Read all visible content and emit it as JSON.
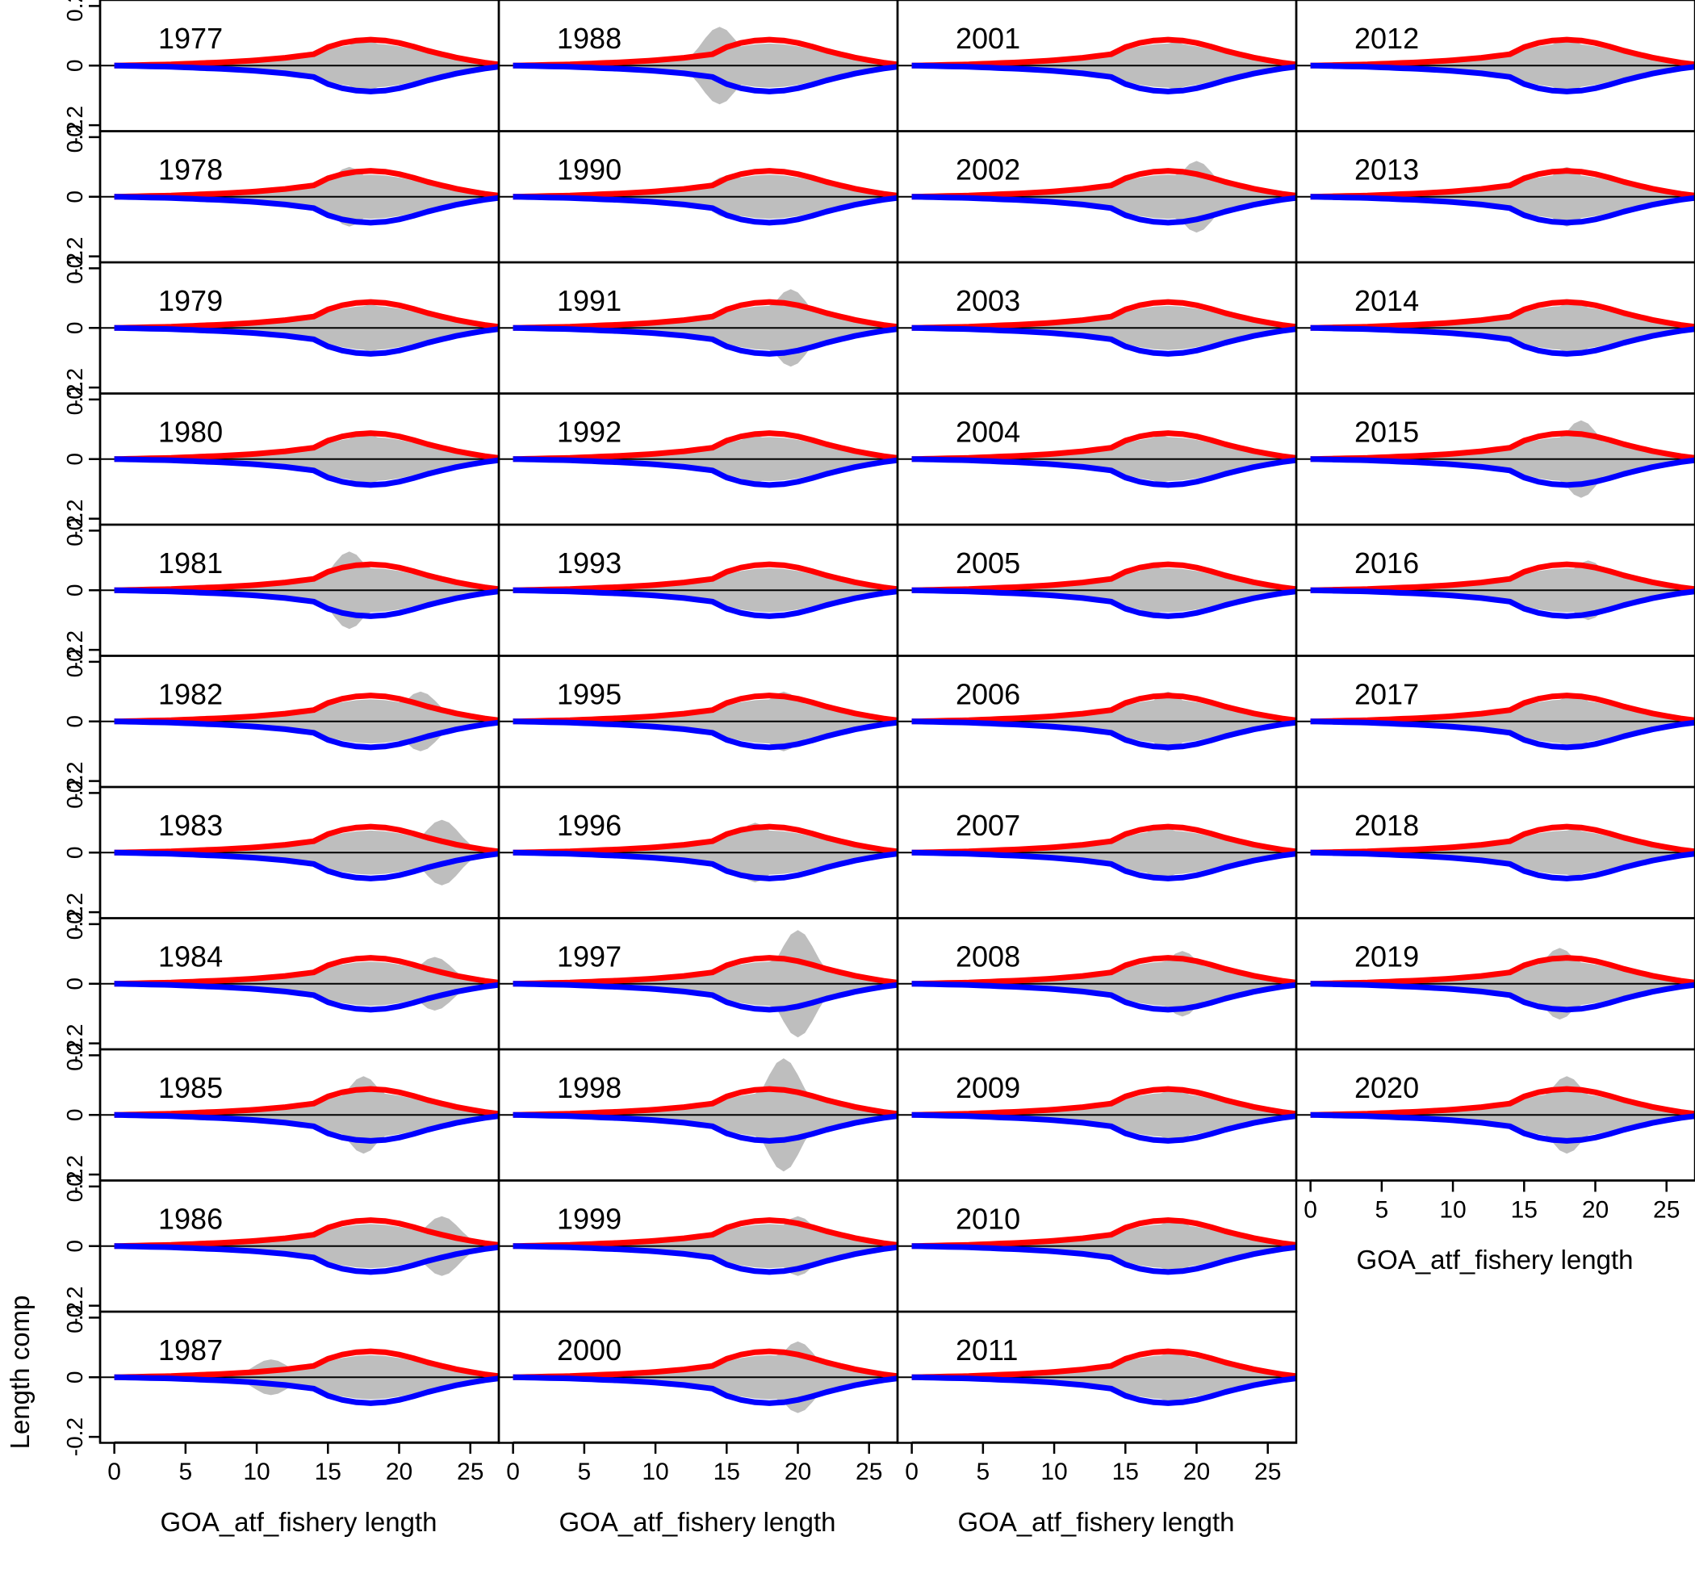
{
  "colors": {
    "observed_fill": "#bebebe",
    "expected_positive": "#ff0000",
    "expected_negative": "#0000ff",
    "zero_line": "#000000",
    "frame": "#000000"
  },
  "axes": {
    "xlabel": "GOA_atf_fishery length",
    "ylabel": "Length comp",
    "x_ticks": [
      0,
      5,
      10,
      15,
      20,
      25
    ],
    "x_tick_labels": [
      "0",
      "5",
      "10",
      "15",
      "20",
      "25"
    ],
    "y_ticks": [
      -0.2,
      0,
      0.2
    ],
    "y_tick_labels": [
      "-0.2",
      "0",
      "0.2"
    ]
  },
  "chart_data": {
    "type": "area",
    "layout": "small multiples, 11 rows x 4 columns, filled column by column",
    "xlabel": "GOA_atf_fishery length",
    "ylabel": "Length comp",
    "xlim": [
      -1,
      27
    ],
    "ylim": [
      -0.22,
      0.22
    ],
    "x_ticks": [
      0,
      5,
      10,
      15,
      20,
      25
    ],
    "y_ticks": [
      -0.2,
      0,
      0.2
    ],
    "grid": false,
    "legend": "none",
    "series_descriptions": [
      "grey shaded area: observed length composition (mirrored above and below zero)",
      "red line: expected composition (positive side)",
      "blue line: expected composition (negative side)"
    ],
    "expected_profile": {
      "x": [
        0,
        2,
        4,
        6,
        8,
        10,
        12,
        14,
        15,
        16,
        17,
        18,
        19,
        20,
        21,
        22,
        23,
        24,
        25,
        26,
        27
      ],
      "y": [
        0.0,
        0.002,
        0.004,
        0.008,
        0.012,
        0.018,
        0.026,
        0.038,
        0.062,
        0.076,
        0.084,
        0.087,
        0.084,
        0.076,
        0.064,
        0.05,
        0.038,
        0.027,
        0.018,
        0.01,
        0.004
      ]
    },
    "panels": [
      {
        "year": "1977",
        "column": 1,
        "row": 1,
        "obs_peak_x": 17.5,
        "obs_peak_y": 0.09
      },
      {
        "year": "1978",
        "column": 1,
        "row": 2,
        "obs_peak_x": 16.5,
        "obs_peak_y": 0.1
      },
      {
        "year": "1979",
        "column": 1,
        "row": 3,
        "obs_peak_x": 18,
        "obs_peak_y": 0.08
      },
      {
        "year": "1980",
        "column": 1,
        "row": 4,
        "obs_peak_x": 17.5,
        "obs_peak_y": 0.09
      },
      {
        "year": "1981",
        "column": 1,
        "row": 5,
        "obs_peak_x": 16.5,
        "obs_peak_y": 0.13
      },
      {
        "year": "1982",
        "column": 1,
        "row": 6,
        "obs_peak_x": 21.5,
        "obs_peak_y": 0.1
      },
      {
        "year": "1983",
        "column": 1,
        "row": 7,
        "obs_peak_x": 23,
        "obs_peak_y": 0.11
      },
      {
        "year": "1984",
        "column": 1,
        "row": 8,
        "obs_peak_x": 22.5,
        "obs_peak_y": 0.09
      },
      {
        "year": "1985",
        "column": 1,
        "row": 9,
        "obs_peak_x": 17.5,
        "obs_peak_y": 0.13
      },
      {
        "year": "1986",
        "column": 1,
        "row": 10,
        "obs_peak_x": 23,
        "obs_peak_y": 0.1
      },
      {
        "year": "1987",
        "column": 1,
        "row": 11,
        "obs_peak_x": 11,
        "obs_peak_y": 0.06
      },
      {
        "year": "1988",
        "column": 2,
        "row": 1,
        "obs_peak_x": 14.5,
        "obs_peak_y": 0.13
      },
      {
        "year": "1990",
        "column": 2,
        "row": 2,
        "obs_peak_x": 15,
        "obs_peak_y": 0.07
      },
      {
        "year": "1991",
        "column": 2,
        "row": 3,
        "obs_peak_x": 19.5,
        "obs_peak_y": 0.13
      },
      {
        "year": "1992",
        "column": 2,
        "row": 4,
        "obs_peak_x": 17,
        "obs_peak_y": 0.08
      },
      {
        "year": "1993",
        "column": 2,
        "row": 5,
        "obs_peak_x": 17.5,
        "obs_peak_y": 0.07
      },
      {
        "year": "1995",
        "column": 2,
        "row": 6,
        "obs_peak_x": 19,
        "obs_peak_y": 0.1
      },
      {
        "year": "1996",
        "column": 2,
        "row": 7,
        "obs_peak_x": 17,
        "obs_peak_y": 0.1
      },
      {
        "year": "1997",
        "column": 2,
        "row": 8,
        "obs_peak_x": 20,
        "obs_peak_y": 0.18
      },
      {
        "year": "1998",
        "column": 2,
        "row": 9,
        "obs_peak_x": 19,
        "obs_peak_y": 0.19
      },
      {
        "year": "1999",
        "column": 2,
        "row": 10,
        "obs_peak_x": 20,
        "obs_peak_y": 0.1
      },
      {
        "year": "2000",
        "column": 2,
        "row": 11,
        "obs_peak_x": 20,
        "obs_peak_y": 0.12
      },
      {
        "year": "2001",
        "column": 3,
        "row": 1,
        "obs_peak_x": 18.5,
        "obs_peak_y": 0.08
      },
      {
        "year": "2002",
        "column": 3,
        "row": 2,
        "obs_peak_x": 20,
        "obs_peak_y": 0.12
      },
      {
        "year": "2003",
        "column": 3,
        "row": 3,
        "obs_peak_x": 17.5,
        "obs_peak_y": 0.07
      },
      {
        "year": "2004",
        "column": 3,
        "row": 4,
        "obs_peak_x": 17.5,
        "obs_peak_y": 0.08
      },
      {
        "year": "2005",
        "column": 3,
        "row": 5,
        "obs_peak_x": 17,
        "obs_peak_y": 0.08
      },
      {
        "year": "2006",
        "column": 3,
        "row": 6,
        "obs_peak_x": 18,
        "obs_peak_y": 0.1
      },
      {
        "year": "2007",
        "column": 3,
        "row": 7,
        "obs_peak_x": 17.5,
        "obs_peak_y": 0.09
      },
      {
        "year": "2008",
        "column": 3,
        "row": 8,
        "obs_peak_x": 19,
        "obs_peak_y": 0.11
      },
      {
        "year": "2009",
        "column": 3,
        "row": 9,
        "obs_peak_x": 18.5,
        "obs_peak_y": 0.09
      },
      {
        "year": "2010",
        "column": 3,
        "row": 10,
        "obs_peak_x": 18.5,
        "obs_peak_y": 0.09
      },
      {
        "year": "2011",
        "column": 3,
        "row": 11,
        "obs_peak_x": 18.5,
        "obs_peak_y": 0.09
      },
      {
        "year": "2012",
        "column": 4,
        "row": 1,
        "obs_peak_x": 18,
        "obs_peak_y": 0.09
      },
      {
        "year": "2013",
        "column": 4,
        "row": 2,
        "obs_peak_x": 18,
        "obs_peak_y": 0.1
      },
      {
        "year": "2014",
        "column": 4,
        "row": 3,
        "obs_peak_x": 18.5,
        "obs_peak_y": 0.09
      },
      {
        "year": "2015",
        "column": 4,
        "row": 4,
        "obs_peak_x": 19,
        "obs_peak_y": 0.13
      },
      {
        "year": "2016",
        "column": 4,
        "row": 5,
        "obs_peak_x": 19.5,
        "obs_peak_y": 0.1
      },
      {
        "year": "2017",
        "column": 4,
        "row": 6,
        "obs_peak_x": 18.5,
        "obs_peak_y": 0.09
      },
      {
        "year": "2018",
        "column": 4,
        "row": 7,
        "obs_peak_x": 18.5,
        "obs_peak_y": 0.08
      },
      {
        "year": "2019",
        "column": 4,
        "row": 8,
        "obs_peak_x": 17.5,
        "obs_peak_y": 0.12
      },
      {
        "year": "2020",
        "column": 4,
        "row": 9,
        "obs_peak_x": 18,
        "obs_peak_y": 0.13
      }
    ]
  }
}
